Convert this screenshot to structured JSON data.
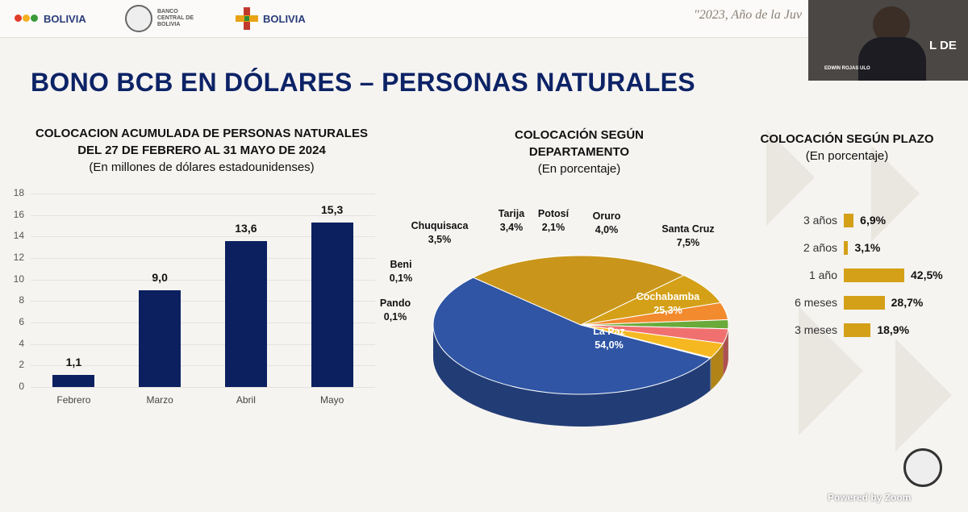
{
  "header": {
    "logo1_text": "BOLIVIA",
    "logo2_line1": "BANCO",
    "logo2_line2": "CENTRAL DE",
    "logo2_line3": "BOLIVIA",
    "logo3_text": "BOLIVIA",
    "motto": "\"2023, Año de la Juv"
  },
  "slide_title": "BONO BCB EN DÓLARES – PERSONAS NATURALES",
  "video": {
    "name_tag": "EDWIN ROJAS ULO",
    "overlay_text": "L DE"
  },
  "powered_by": "Powered by Zoom",
  "colors": {
    "navy": "#0c2060",
    "gold": "#d4a017",
    "blue_slice": "#2f55a4",
    "orange_slice": "#f28a2e"
  },
  "chart_data": [
    {
      "type": "bar",
      "title_line1": "COLOCACION ACUMULADA DE PERSONAS NATURALES",
      "title_line2": "DEL 27 DE FEBRERO AL 31 MAYO DE 2024",
      "subtitle": "(En millones de dólares estadounidenses)",
      "categories": [
        "Febrero",
        "Marzo",
        "Abril",
        "Mayo"
      ],
      "values": [
        1.1,
        9.0,
        13.6,
        15.3
      ],
      "value_labels": [
        "1,1",
        "9,0",
        "13,6",
        "15,3"
      ],
      "yticks": [
        "0",
        "2",
        "4",
        "6",
        "8",
        "10",
        "12",
        "14",
        "16",
        "18"
      ],
      "ylim": [
        0,
        18
      ],
      "grid": true
    },
    {
      "type": "pie",
      "title_line1": "COLOCACIÓN SEGÚN",
      "title_line2": "DEPARTAMENTO",
      "subtitle": "(En porcentaje)",
      "slices": [
        {
          "name": "La Paz",
          "value": 54.0,
          "label": "54,0%",
          "color": "#2f55a4"
        },
        {
          "name": "Cochabamba",
          "value": 25.3,
          "label": "25,3%",
          "color": "#c9961b"
        },
        {
          "name": "Santa Cruz",
          "value": 7.5,
          "label": "7,5%",
          "color": "#d4a017"
        },
        {
          "name": "Oruro",
          "value": 4.0,
          "label": "4,0%",
          "color": "#f28a2e"
        },
        {
          "name": "Potosí",
          "value": 2.1,
          "label": "2,1%",
          "color": "#6aaa3a"
        },
        {
          "name": "Tarija",
          "value": 3.4,
          "label": "3,4%",
          "color": "#f07070"
        },
        {
          "name": "Chuquisaca",
          "value": 3.5,
          "label": "3,5%",
          "color": "#f5b820"
        },
        {
          "name": "Beni",
          "value": 0.1,
          "label": "0,1%",
          "color": "#a9a9a9"
        },
        {
          "name": "Pando",
          "value": 0.1,
          "label": "0,1%",
          "color": "#7f7f7f"
        }
      ]
    },
    {
      "type": "bar",
      "orientation": "horizontal",
      "title": "COLOCACIÓN SEGÚN PLAZO",
      "subtitle": "(En porcentaje)",
      "categories": [
        "3 años",
        "2 años",
        "1 año",
        "6 meses",
        "3 meses"
      ],
      "values": [
        6.9,
        3.1,
        42.5,
        28.7,
        18.9
      ],
      "value_labels": [
        "6,9%",
        "3,1%",
        "42,5%",
        "28,7%",
        "18,9%"
      ]
    }
  ]
}
